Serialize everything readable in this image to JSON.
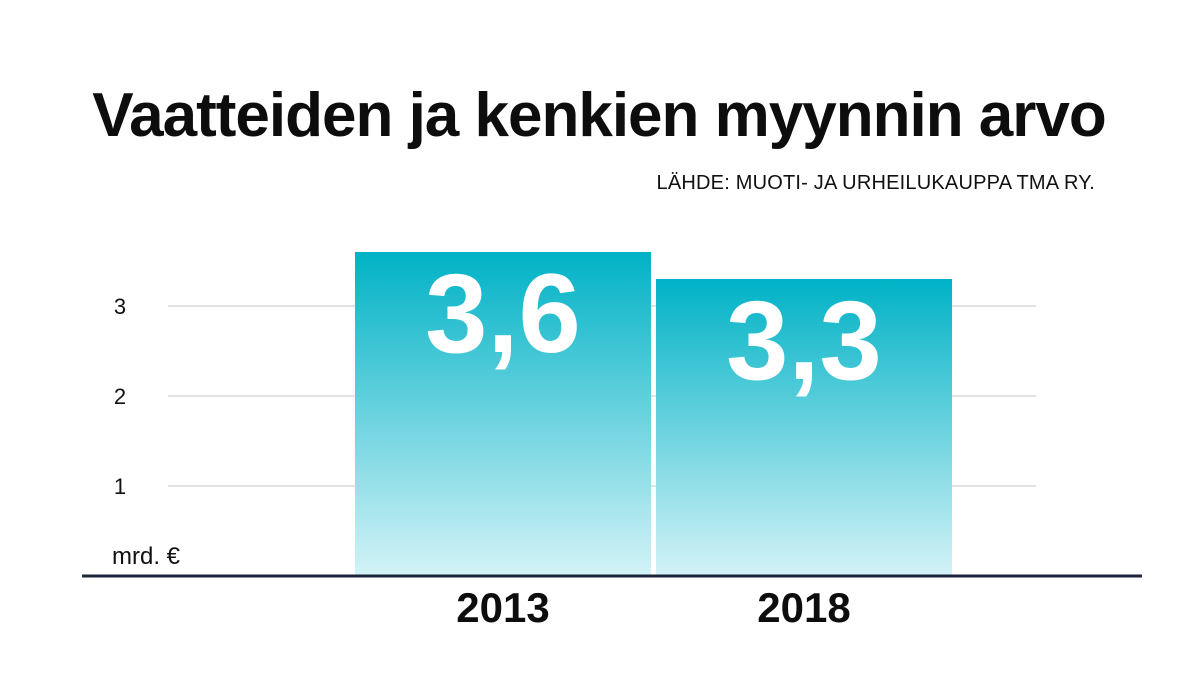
{
  "title": "Vaatteiden ja kenkien myynnin arvo",
  "source": "LÄHDE: MUOTI- JA URHEILUKAUPPA TMA RY.",
  "colors": {
    "bar_top": "#00b2c6",
    "bar_bottom": "#d3f3f7",
    "baseline": "#1c2438",
    "grid": "#c4c4c4"
  },
  "chart_data": {
    "type": "bar",
    "categories": [
      "2013",
      "2018"
    ],
    "values": [
      3.6,
      3.3
    ],
    "value_labels": [
      "3,6",
      "3,3"
    ],
    "ylabel": "mrd. €",
    "yticks": [
      1,
      2,
      3
    ],
    "ylim": [
      0,
      3.6
    ],
    "grid": true,
    "legend": "none"
  }
}
